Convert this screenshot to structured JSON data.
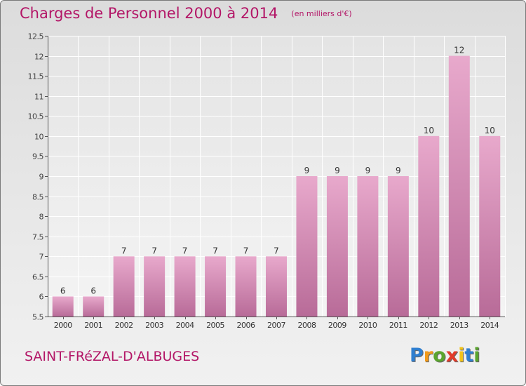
{
  "header": {
    "title": "Charges de Personnel 2000 à 2014",
    "subtitle": "(en milliers d'€)"
  },
  "footer": {
    "commune": "SAINT-FRéZAL-D'ALBUGES",
    "logo_letters": [
      {
        "char": "P",
        "color": "#2f7fd0"
      },
      {
        "char": "r",
        "color": "#f29a1a"
      },
      {
        "char": "o",
        "color": "#5aa52e"
      },
      {
        "char": "x",
        "color": "#e23b2a"
      },
      {
        "char": "i",
        "color": "#f2c318"
      },
      {
        "char": "t",
        "color": "#2f7fd0"
      },
      {
        "char": "i",
        "color": "#5aa52e"
      }
    ]
  },
  "chart_data": {
    "type": "bar",
    "categories": [
      "2000",
      "2001",
      "2002",
      "2003",
      "2004",
      "2005",
      "2006",
      "2007",
      "2008",
      "2009",
      "2010",
      "2011",
      "2012",
      "2013",
      "2014"
    ],
    "values": [
      6,
      6,
      7,
      7,
      7,
      7,
      7,
      7,
      9,
      9,
      9,
      9,
      10,
      12,
      10
    ],
    "data_labels": [
      "6",
      "6",
      "7",
      "7",
      "7",
      "7",
      "7",
      "7",
      "9",
      "9",
      "9",
      "9",
      "10",
      "12",
      "10"
    ],
    "ylim": [
      5.5,
      12.5
    ],
    "y_ticks": [
      5.5,
      6,
      6.5,
      7,
      7.5,
      8,
      8.5,
      9,
      9.5,
      10,
      10.5,
      11,
      11.5,
      12,
      12.5
    ],
    "y_tick_labels": [
      "5.5",
      "6",
      "6.5",
      "7",
      "7.5",
      "8",
      "8.5",
      "9",
      "9.5",
      "10",
      "10.5",
      "11",
      "11.5",
      "12",
      "12.5"
    ],
    "bar_color_top": "#e8a9cc",
    "bar_color_bottom": "#b86b98",
    "grid": true,
    "xlabel": "",
    "ylabel": ""
  }
}
